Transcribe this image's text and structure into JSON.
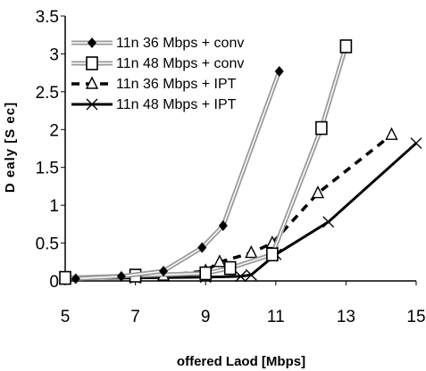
{
  "chart_data": {
    "type": "line",
    "title": "",
    "xlabel": "offered Laod [Mbps]",
    "ylabel": "D ealy [S ec]",
    "xlim": [
      5,
      15
    ],
    "ylim": [
      0,
      3.5
    ],
    "x_ticks": [
      "5",
      "7",
      "9",
      "11",
      "13",
      "15"
    ],
    "y_ticks": [
      "0",
      "0.5",
      "1",
      "1.5",
      "2",
      "2.5",
      "3",
      "3.5"
    ],
    "grid": false,
    "legend_position": "top-left",
    "series": [
      {
        "name": "11n 36 Mbps + conv",
        "color": "#999999",
        "marker": "diamond",
        "style": "double-gray",
        "x": [
          5.3,
          6.6,
          7.8,
          8.9,
          9.5,
          11.1
        ],
        "y": [
          0.03,
          0.06,
          0.13,
          0.44,
          0.73,
          2.77
        ]
      },
      {
        "name": "11n 48 Mbps + conv",
        "color": "#999999",
        "marker": "square",
        "style": "double-gray",
        "x": [
          5.0,
          7.0,
          9.0,
          9.7,
          10.9,
          12.3,
          13.0
        ],
        "y": [
          0.04,
          0.07,
          0.1,
          0.17,
          0.35,
          2.02,
          3.1
        ]
      },
      {
        "name": "11n 36 Mbps + IPT",
        "color": "#000000",
        "marker": "triangle",
        "style": "dashed",
        "x": [
          5.0,
          7.0,
          7.8,
          9.0,
          9.4,
          10.3,
          10.9,
          12.2,
          14.3
        ],
        "y": [
          0.03,
          0.05,
          0.07,
          0.13,
          0.25,
          0.37,
          0.5,
          1.16,
          1.93
        ]
      },
      {
        "name": "11n 48 Mbps + IPT",
        "color": "#000000",
        "marker": "x",
        "style": "solid",
        "x": [
          5.0,
          7.0,
          9.0,
          10.0,
          10.3,
          11.0,
          12.5,
          15.0
        ],
        "y": [
          0.03,
          0.04,
          0.05,
          0.06,
          0.08,
          0.35,
          0.78,
          1.82
        ]
      }
    ]
  }
}
